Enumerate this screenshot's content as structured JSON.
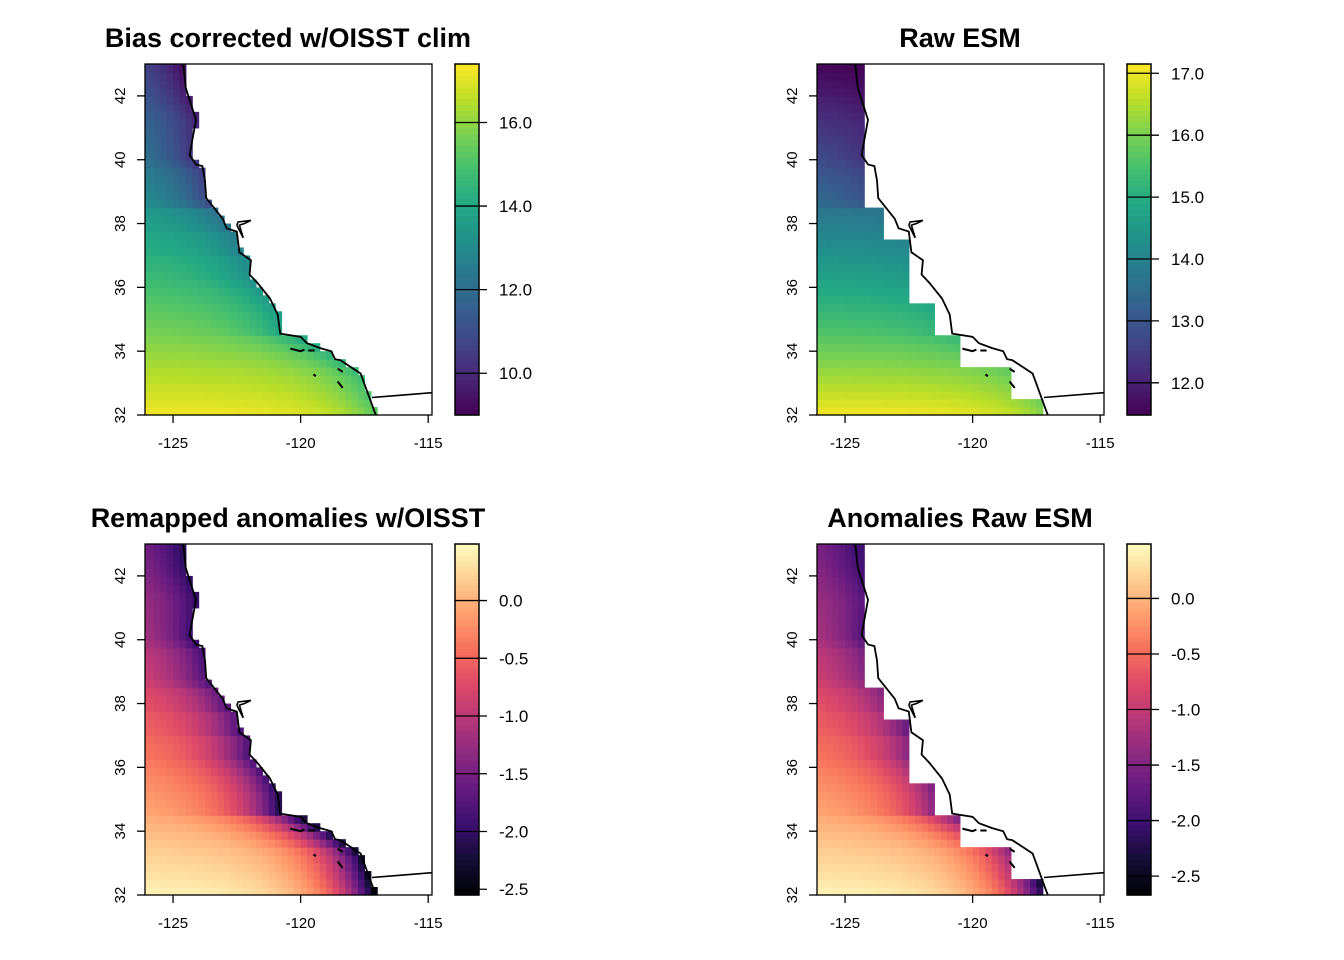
{
  "chart_data": [
    {
      "type": "heatmap",
      "title": "Bias corrected w/OISST clim",
      "xlabel": "",
      "ylabel": "",
      "xlim": [
        -126.1,
        -114.85
      ],
      "ylim": [
        32,
        43
      ],
      "x_ticks": [
        -125,
        -120,
        -115
      ],
      "y_ticks": [
        32,
        34,
        36,
        38,
        40,
        42
      ],
      "colormap": "viridis",
      "color_range": [
        9.0,
        17.4
      ],
      "colorbar_ticks": [
        10.0,
        12.0,
        14.0,
        16.0
      ],
      "colorbar_tick_labels": [
        "10.0",
        "12.0",
        "14.0",
        "16.0"
      ],
      "grid_resolution_deg": 0.25,
      "mask": "fine",
      "field": {
        "southwest_corner_value": 17.3,
        "north_offshore_value": 11.5,
        "nearshore_north_value": 9.2,
        "nearshore_central_value": 12.0,
        "nearshore_south_value": 15.3
      }
    },
    {
      "type": "heatmap",
      "title": "Raw ESM",
      "xlabel": "",
      "ylabel": "",
      "xlim": [
        -126.1,
        -114.85
      ],
      "ylim": [
        32,
        43
      ],
      "x_ticks": [
        -125,
        -120,
        -115
      ],
      "y_ticks": [
        32,
        34,
        36,
        38,
        40,
        42
      ],
      "colormap": "viridis",
      "color_range": [
        11.48,
        17.15
      ],
      "colorbar_ticks": [
        12.0,
        13.0,
        14.0,
        15.0,
        16.0,
        17.0
      ],
      "colorbar_tick_labels": [
        "12.0",
        "13.0",
        "14.0",
        "15.0",
        "16.0",
        "17.0"
      ],
      "grid_resolution_deg": 0.25,
      "mask": "coarse",
      "field": {
        "southwest_corner_value": 17.1,
        "north_offshore_value": 11.6,
        "nearshore_north_value": 11.5,
        "nearshore_central_value": 13.6,
        "nearshore_south_value": 16.0
      }
    },
    {
      "type": "heatmap",
      "title": "Remapped anomalies w/OISST",
      "xlabel": "",
      "ylabel": "",
      "xlim": [
        -126.1,
        -114.85
      ],
      "ylim": [
        32,
        43
      ],
      "x_ticks": [
        -125,
        -120,
        -115
      ],
      "y_ticks": [
        32,
        34,
        36,
        38,
        40,
        42
      ],
      "colormap": "magma",
      "color_range": [
        -2.55,
        0.49
      ],
      "colorbar_ticks": [
        -2.5,
        -2.0,
        -1.5,
        -1.0,
        -0.5,
        0.0
      ],
      "colorbar_tick_labels": [
        "-2.5",
        "-2.0",
        "-1.5",
        "-1.0",
        "-0.5",
        "0.0"
      ],
      "grid_resolution_deg": 0.25,
      "mask": "fine",
      "field": {
        "southwest_corner_value": 0.45,
        "north_offshore_value": -1.2,
        "nearshore_north_value": -2.1,
        "nearshore_central_value": -1.6,
        "nearshore_south_value": -2.5
      }
    },
    {
      "type": "heatmap",
      "title": "Anomalies Raw ESM",
      "xlabel": "",
      "ylabel": "",
      "xlim": [
        -126.1,
        -114.85
      ],
      "ylim": [
        32,
        43
      ],
      "x_ticks": [
        -125,
        -120,
        -115
      ],
      "y_ticks": [
        32,
        34,
        36,
        38,
        40,
        42
      ],
      "colormap": "magma",
      "color_range": [
        -2.67,
        0.49
      ],
      "colorbar_ticks": [
        -2.5,
        -2.0,
        -1.5,
        -1.0,
        -0.5,
        0.0
      ],
      "colorbar_tick_labels": [
        "-2.5",
        "-2.0",
        "-1.5",
        "-1.0",
        "-0.5",
        "0.0"
      ],
      "grid_resolution_deg": 0.25,
      "mask": "coarse",
      "field": {
        "southwest_corner_value": 0.45,
        "north_offshore_value": -1.3,
        "nearshore_north_value": -2.0,
        "nearshore_central_value": -1.6,
        "nearshore_south_value": -2.6
      }
    }
  ],
  "coastline_lonlat": [
    [
      -124.6,
      43.0
    ],
    [
      -124.5,
      42.25
    ],
    [
      -124.1,
      41.25
    ],
    [
      -124.35,
      40.15
    ],
    [
      -124.1,
      39.85
    ],
    [
      -123.85,
      39.8
    ],
    [
      -123.75,
      39.35
    ],
    [
      -123.7,
      38.8
    ],
    [
      -123.05,
      38.15
    ],
    [
      -122.9,
      37.85
    ],
    [
      -122.5,
      37.75
    ],
    [
      -122.4,
      37.1
    ],
    [
      -121.95,
      36.85
    ],
    [
      -122.0,
      36.4
    ],
    [
      -121.7,
      36.15
    ],
    [
      -121.2,
      35.65
    ],
    [
      -120.9,
      35.15
    ],
    [
      -120.8,
      34.55
    ],
    [
      -120.0,
      34.45
    ],
    [
      -119.75,
      34.25
    ],
    [
      -119.25,
      34.1
    ],
    [
      -118.8,
      34.0
    ],
    [
      -118.65,
      33.75
    ],
    [
      -118.45,
      33.72
    ],
    [
      -117.65,
      33.3
    ],
    [
      -117.1,
      32.1
    ],
    [
      -117.05,
      32.0
    ]
  ],
  "sf_bay_lonlat": [
    [
      -122.5,
      37.95
    ],
    [
      -122.45,
      38.05
    ],
    [
      -121.95,
      38.1
    ],
    [
      -122.2,
      38.0
    ],
    [
      -122.4,
      37.95
    ],
    [
      -122.25,
      37.55
    ],
    [
      -122.5,
      37.95
    ]
  ],
  "border_lonlat": [
    [
      -117.2,
      32.55
    ],
    [
      -114.85,
      32.7
    ]
  ],
  "islands_lonlat": [
    [
      [
        -120.4,
        34.08
      ],
      [
        -120.0,
        34.0
      ],
      [
        -119.85,
        34.05
      ]
    ],
    [
      [
        -119.7,
        34.02
      ],
      [
        -119.45,
        34.02
      ]
    ],
    [
      [
        -119.5,
        33.27
      ],
      [
        -119.4,
        33.22
      ]
    ],
    [
      [
        -118.55,
        33.45
      ],
      [
        -118.35,
        33.35
      ]
    ],
    [
      [
        -118.55,
        33.05
      ],
      [
        -118.35,
        32.85
      ]
    ]
  ]
}
